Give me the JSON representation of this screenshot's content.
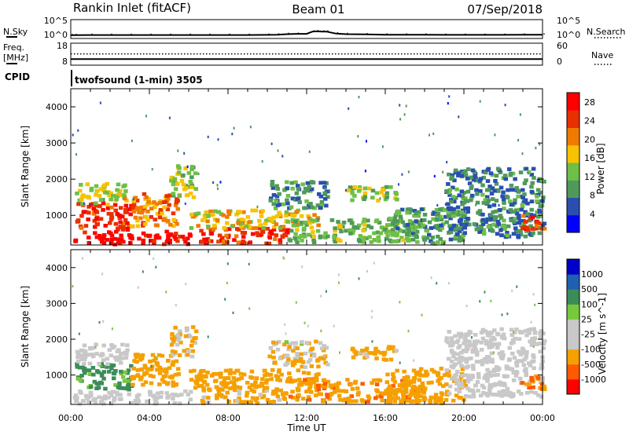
{
  "header": {
    "station": "Rankin Inlet (fitACF)",
    "beam": "Beam 01",
    "date": "07/Sep/2018"
  },
  "panel_nsky": {
    "left_label": "N.Sky",
    "right_label": "N.Search",
    "left_ticks": [
      "10^5",
      "10^0"
    ],
    "right_ticks": [
      "10^5",
      "10^0"
    ]
  },
  "panel_freq": {
    "left_label_line1": "Freq.",
    "left_label_line2": "[MHz]",
    "right_label": "Nave",
    "left_ticks": [
      "18",
      "8"
    ],
    "right_ticks": [
      "60",
      "0"
    ]
  },
  "cpid": {
    "label": "CPID",
    "text": "twofsound (1-min) 3505"
  },
  "colors": {
    "power_scale": [
      "#0000ff",
      "#2a4fb0",
      "#4f9a5a",
      "#6ebf47",
      "#f7c300",
      "#f07a00",
      "#e83000",
      "#ff0000"
    ],
    "velocity_scale": [
      "#ff0000",
      "#ff5a00",
      "#f5a000",
      "#c8c8c8",
      "#c8c8c8",
      "#79c83c",
      "#3c8c5a",
      "#2060b0",
      "#0000c8"
    ],
    "ground_scatter": "#c8c8c8",
    "line": "#000000"
  },
  "chart_data": [
    {
      "type": "line",
      "panel": "sky-noise",
      "ylabel": "N.Sky",
      "y2label": "N.Search",
      "yscale": "log",
      "ylim_exp": [
        0,
        5
      ],
      "x_hours": [
        0,
        0.2,
        1,
        2,
        3,
        4,
        5,
        6,
        7,
        8,
        9,
        10,
        10.5,
        11,
        11.5,
        12,
        12.3,
        12.5,
        12.8,
        13,
        13.5,
        14,
        15,
        16,
        17,
        18,
        19,
        20,
        21,
        22,
        23,
        24
      ],
      "n_sky_exp": [
        0.3,
        0.35,
        0.4,
        0.4,
        0.4,
        0.4,
        0.4,
        0.4,
        0.4,
        0.4,
        0.4,
        0.45,
        0.5,
        0.7,
        0.8,
        0.8,
        1.6,
        1.7,
        1.6,
        1.6,
        0.9,
        0.7,
        0.6,
        0.5,
        0.5,
        0.5,
        0.45,
        0.45,
        0.45,
        0.45,
        0.5,
        0.5
      ]
    },
    {
      "type": "line",
      "panel": "frequency",
      "ylabel": "Freq. [MHz]",
      "y2label": "Nave",
      "ylim": [
        8,
        18
      ],
      "y2lim": [
        0,
        60
      ],
      "freq_mhz": 10.4,
      "nave": 34
    },
    {
      "type": "heatmap",
      "panel": "power",
      "title": "Beam 01",
      "xlabel": "Time UT",
      "ylabel": "Slant Range [km]",
      "xlim_hours": [
        0,
        24
      ],
      "ylim_km": [
        180,
        4500
      ],
      "x_ticks": [
        "00:00",
        "04:00",
        "08:00",
        "12:00",
        "16:00",
        "20:00",
        "00:00"
      ],
      "y_ticks": [
        1000,
        2000,
        3000,
        4000
      ],
      "colorbar_label": "Power [dB]",
      "colorbar_ticks": [
        4,
        8,
        12,
        16,
        20,
        24,
        28
      ],
      "clim": [
        0,
        30
      ],
      "regions": [
        {
          "t": [
            0.1,
            6.0
          ],
          "r": [
            200,
            560
          ],
          "v": 29
        },
        {
          "t": [
            6.5,
            11.0
          ],
          "r": [
            220,
            700
          ],
          "v": 25
        },
        {
          "t": [
            0.2,
            3.0
          ],
          "r": [
            600,
            1350
          ],
          "v": 25
        },
        {
          "t": [
            3.0,
            5.5
          ],
          "r": [
            700,
            1600
          ],
          "v": 21
        },
        {
          "t": [
            0.2,
            2.8
          ],
          "r": [
            1300,
            1900
          ],
          "v": 15
        },
        {
          "t": [
            5.0,
            6.3
          ],
          "r": [
            1500,
            2400
          ],
          "v": 14
        },
        {
          "t": [
            6.0,
            12.5
          ],
          "r": [
            650,
            1150
          ],
          "v": 17
        },
        {
          "t": [
            10.0,
            13.0
          ],
          "r": [
            1200,
            1950
          ],
          "v": 9
        },
        {
          "t": [
            11.0,
            18.0
          ],
          "r": [
            260,
            900
          ],
          "v": 12
        },
        {
          "t": [
            14.0,
            16.5
          ],
          "r": [
            1400,
            1800
          ],
          "v": 13
        },
        {
          "t": [
            16.0,
            20.0
          ],
          "r": [
            220,
            1200
          ],
          "v": 10
        },
        {
          "t": [
            19.0,
            24.0
          ],
          "r": [
            400,
            2300
          ],
          "v": 8
        },
        {
          "t": [
            22.8,
            24.0
          ],
          "r": [
            600,
            1000
          ],
          "v": 25
        },
        {
          "t": [
            0.0,
            24.0
          ],
          "r": [
            1200,
            4300
          ],
          "v": 7
        }
      ]
    },
    {
      "type": "heatmap",
      "panel": "velocity",
      "xlabel": "Time UT",
      "ylabel": "Slant Range [km]",
      "xlim_hours": [
        0,
        24
      ],
      "ylim_km": [
        180,
        4500
      ],
      "x_ticks": [
        "00:00",
        "04:00",
        "08:00",
        "12:00",
        "16:00",
        "20:00",
        "00:00"
      ],
      "y_ticks": [
        1000,
        2000,
        3000,
        4000
      ],
      "colorbar_label": "Velocity [m s^-1]",
      "colorbar_ticks": [
        "1000",
        "500",
        "100",
        "25",
        "-25",
        "-100",
        "-500",
        "-1000"
      ],
      "regions": [
        {
          "t": [
            0.1,
            6.0
          ],
          "r": [
            200,
            560
          ],
          "v": 0,
          "gs": true
        },
        {
          "t": [
            6.5,
            11.0
          ],
          "r": [
            220,
            700
          ],
          "v": -200
        },
        {
          "t": [
            0.2,
            3.0
          ],
          "r": [
            600,
            1350
          ],
          "v": 200
        },
        {
          "t": [
            3.0,
            5.5
          ],
          "r": [
            700,
            1600
          ],
          "v": -300
        },
        {
          "t": [
            0.2,
            2.8
          ],
          "r": [
            1300,
            1900
          ],
          "v": 0,
          "gs": true
        },
        {
          "t": [
            5.0,
            6.3
          ],
          "r": [
            1500,
            2400
          ],
          "v": -150
        },
        {
          "t": [
            6.0,
            12.5
          ],
          "r": [
            650,
            1150
          ],
          "v": -250
        },
        {
          "t": [
            10.0,
            13.0
          ],
          "r": [
            1200,
            1950
          ],
          "v": -120
        },
        {
          "t": [
            11.0,
            18.0
          ],
          "r": [
            260,
            900
          ],
          "v": -400
        },
        {
          "t": [
            14.0,
            16.5
          ],
          "r": [
            1400,
            1800
          ],
          "v": -200
        },
        {
          "t": [
            16.0,
            20.0
          ],
          "r": [
            220,
            1200
          ],
          "v": -300
        },
        {
          "t": [
            19.0,
            24.0
          ],
          "r": [
            400,
            2300
          ],
          "v": 0,
          "gs": true
        },
        {
          "t": [
            22.8,
            24.0
          ],
          "r": [
            600,
            1000
          ],
          "v": -500
        },
        {
          "t": [
            0.0,
            24.0
          ],
          "r": [
            1200,
            4300
          ],
          "v": 50
        }
      ]
    }
  ]
}
